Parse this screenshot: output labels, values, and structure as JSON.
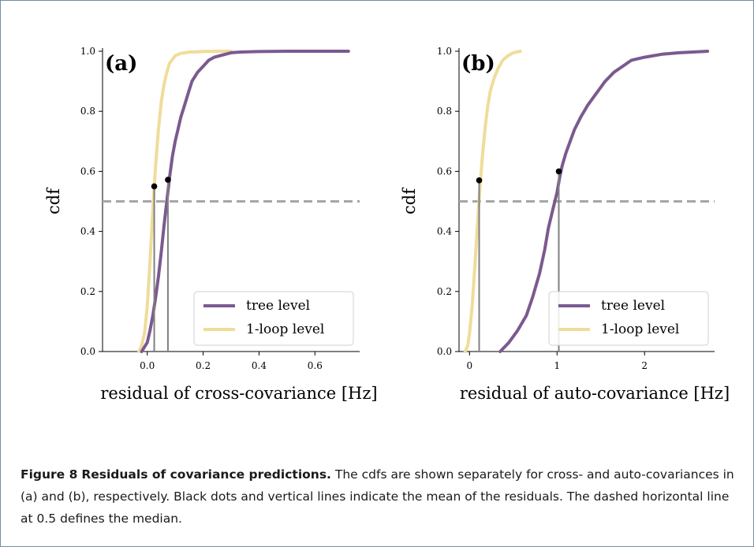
{
  "colors": {
    "tree": "#7b5a8f",
    "loop": "#f0dc9a",
    "dashed": "#a6a6a6",
    "mean_line": "#808080",
    "dot": "#000000",
    "frame": "#6b8fa8"
  },
  "caption": {
    "label": "Figure 8",
    "title": "Residuals of covariance predictions.",
    "body": "The cdfs are shown separately for cross- and auto-covariances in (a) and (b), respectively. Black dots and vertical lines indicate the mean of the residuals. The dashed horizontal line at 0.5 defines the median."
  },
  "chart_data": [
    {
      "type": "line",
      "panel_label": "(a)",
      "xlabel": "residual of cross-covariance [Hz]",
      "ylabel": "cdf",
      "xlim": [
        -0.16,
        0.76
      ],
      "ylim": [
        0.0,
        1.0
      ],
      "xticks": [
        0.0,
        0.2,
        0.4,
        0.6
      ],
      "xtick_labels": [
        "0.0",
        "0.2",
        "0.4",
        "0.6"
      ],
      "yticks": [
        0.0,
        0.2,
        0.4,
        0.6,
        0.8,
        1.0
      ],
      "ytick_labels": [
        "0.0",
        "0.2",
        "0.4",
        "0.6",
        "0.8",
        "1.0"
      ],
      "median_line": 0.5,
      "legend_position": "lower right",
      "series": [
        {
          "name": "tree level",
          "color_key": "tree",
          "x": [
            -0.02,
            0.0,
            0.01,
            0.02,
            0.03,
            0.04,
            0.05,
            0.06,
            0.07,
            0.08,
            0.09,
            0.1,
            0.11,
            0.12,
            0.13,
            0.14,
            0.15,
            0.16,
            0.18,
            0.2,
            0.22,
            0.24,
            0.26,
            0.28,
            0.3,
            0.33,
            0.36,
            0.4,
            0.5,
            0.6,
            0.72
          ],
          "y": [
            0.0,
            0.03,
            0.07,
            0.12,
            0.18,
            0.25,
            0.33,
            0.42,
            0.5,
            0.58,
            0.65,
            0.7,
            0.74,
            0.78,
            0.81,
            0.84,
            0.87,
            0.9,
            0.93,
            0.95,
            0.97,
            0.98,
            0.985,
            0.99,
            0.995,
            0.997,
            0.998,
            0.999,
            1.0,
            1.0,
            1.0
          ],
          "mean": {
            "x": 0.074,
            "y": 0.572
          }
        },
        {
          "name": "1-loop level",
          "color_key": "loop",
          "x": [
            -0.03,
            -0.02,
            -0.01,
            0.0,
            0.01,
            0.02,
            0.03,
            0.04,
            0.05,
            0.06,
            0.07,
            0.08,
            0.1,
            0.12,
            0.15,
            0.2,
            0.25,
            0.3
          ],
          "y": [
            0.0,
            0.02,
            0.06,
            0.15,
            0.3,
            0.47,
            0.62,
            0.74,
            0.83,
            0.89,
            0.93,
            0.96,
            0.985,
            0.993,
            0.997,
            0.999,
            1.0,
            1.0
          ],
          "mean": {
            "x": 0.025,
            "y": 0.55
          }
        }
      ]
    },
    {
      "type": "line",
      "panel_label": "(b)",
      "xlabel": "residual of auto-covariance [Hz]",
      "ylabel": "cdf",
      "xlim": [
        -0.12,
        2.8
      ],
      "ylim": [
        0.0,
        1.0
      ],
      "xticks": [
        0,
        1,
        2
      ],
      "xtick_labels": [
        "0",
        "1",
        "2"
      ],
      "yticks": [
        0.0,
        0.2,
        0.4,
        0.6,
        0.8,
        1.0
      ],
      "ytick_labels": [
        "0.0",
        "0.2",
        "0.4",
        "0.6",
        "0.8",
        "1.0"
      ],
      "median_line": 0.5,
      "legend_position": "lower right",
      "series": [
        {
          "name": "tree level",
          "color_key": "tree",
          "x": [
            0.35,
            0.45,
            0.55,
            0.65,
            0.72,
            0.8,
            0.86,
            0.9,
            0.95,
            1.0,
            1.03,
            1.06,
            1.1,
            1.15,
            1.2,
            1.27,
            1.35,
            1.45,
            1.55,
            1.65,
            1.75,
            1.85,
            2.0,
            2.2,
            2.4,
            2.6,
            2.72
          ],
          "y": [
            0.0,
            0.03,
            0.07,
            0.12,
            0.18,
            0.26,
            0.34,
            0.41,
            0.47,
            0.53,
            0.58,
            0.62,
            0.66,
            0.7,
            0.74,
            0.78,
            0.82,
            0.86,
            0.9,
            0.93,
            0.95,
            0.97,
            0.98,
            0.99,
            0.995,
            0.998,
            1.0
          ],
          "mean": {
            "x": 1.02,
            "y": 0.6
          }
        },
        {
          "name": "1-loop level",
          "color_key": "loop",
          "x": [
            -0.05,
            -0.02,
            0.0,
            0.03,
            0.06,
            0.09,
            0.12,
            0.15,
            0.18,
            0.21,
            0.24,
            0.28,
            0.33,
            0.38,
            0.44,
            0.5,
            0.58
          ],
          "y": [
            0.0,
            0.02,
            0.06,
            0.15,
            0.28,
            0.42,
            0.55,
            0.66,
            0.75,
            0.82,
            0.87,
            0.91,
            0.945,
            0.97,
            0.985,
            0.995,
            1.0
          ],
          "mean": {
            "x": 0.11,
            "y": 0.57
          }
        }
      ]
    }
  ]
}
